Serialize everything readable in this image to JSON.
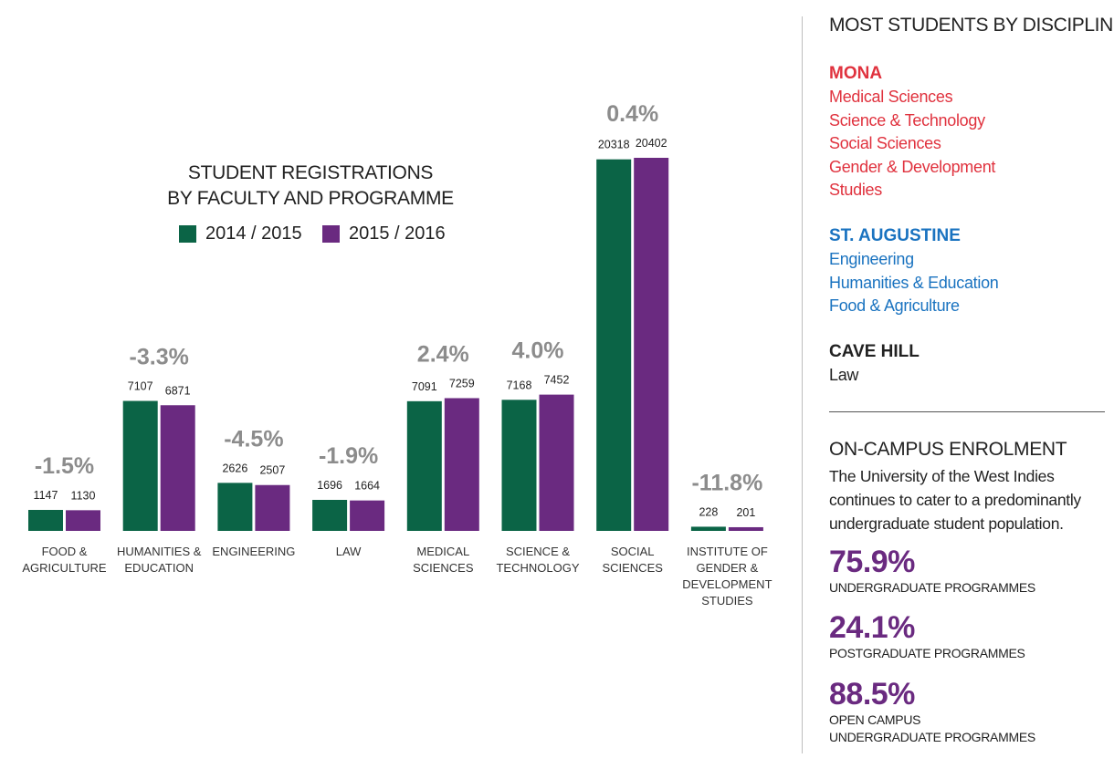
{
  "chart_data": {
    "type": "bar",
    "title": [
      "STUDENT REGISTRATIONS",
      "BY FACULTY AND PROGRAMME"
    ],
    "categories": [
      [
        "FOOD &",
        "AGRICULTURE"
      ],
      [
        "HUMANITIES &",
        "EDUCATION"
      ],
      [
        "ENGINEERING"
      ],
      [
        "LAW"
      ],
      [
        "MEDICAL",
        "SCIENCES"
      ],
      [
        "SCIENCE &",
        "TECHNOLOGY"
      ],
      [
        "SOCIAL",
        "SCIENCES"
      ],
      [
        "INSTITUTE OF",
        "GENDER &",
        "DEVELOPMENT",
        "STUDIES"
      ]
    ],
    "series": [
      {
        "name": "2014 / 2015",
        "color": "#0b6446",
        "values": [
          1147,
          7107,
          2626,
          1696,
          7091,
          7168,
          20318,
          228
        ]
      },
      {
        "name": "2015 / 2016",
        "color": "#6a2a80",
        "values": [
          1130,
          6871,
          2507,
          1664,
          7259,
          7452,
          20402,
          201
        ]
      }
    ],
    "changes": [
      "-1.5%",
      "-3.3%",
      "-4.5%",
      "-1.9%",
      "2.4%",
      "4.0%",
      "0.4%",
      "-11.8%"
    ],
    "ylim": [
      0,
      20402
    ],
    "legend": "top-left",
    "grid": false
  },
  "sidebar": {
    "heading": "MOST STUDENTS BY DISCIPLINE",
    "campuses": [
      {
        "name": "MONA",
        "color": "#e0323e",
        "items": [
          "Medical Sciences",
          "Science & Technology",
          "Social Sciences",
          "Gender & Development",
          "Studies"
        ]
      },
      {
        "name": "ST. AUGUSTINE",
        "color": "#1a73c0",
        "items": [
          "Engineering",
          "Humanities & Education",
          "Food & Agriculture"
        ]
      },
      {
        "name": "CAVE HILL",
        "color": "#222222",
        "items": [
          "Law"
        ]
      }
    ],
    "enrolment_heading": "ON-CAMPUS ENROLMENT",
    "enrolment_text": "The University of the West Indies continues to cater to a predominantly undergraduate student population.",
    "stats": [
      {
        "value": "75.9%",
        "lines": [
          "UNDERGRADUATE PROGRAMMES"
        ]
      },
      {
        "value": "24.1%",
        "lines": [
          "POSTGRADUATE PROGRAMMES"
        ]
      },
      {
        "value": "88.5%",
        "lines": [
          "OPEN CAMPUS",
          "UNDERGRADUATE PROGRAMMES"
        ]
      }
    ]
  }
}
